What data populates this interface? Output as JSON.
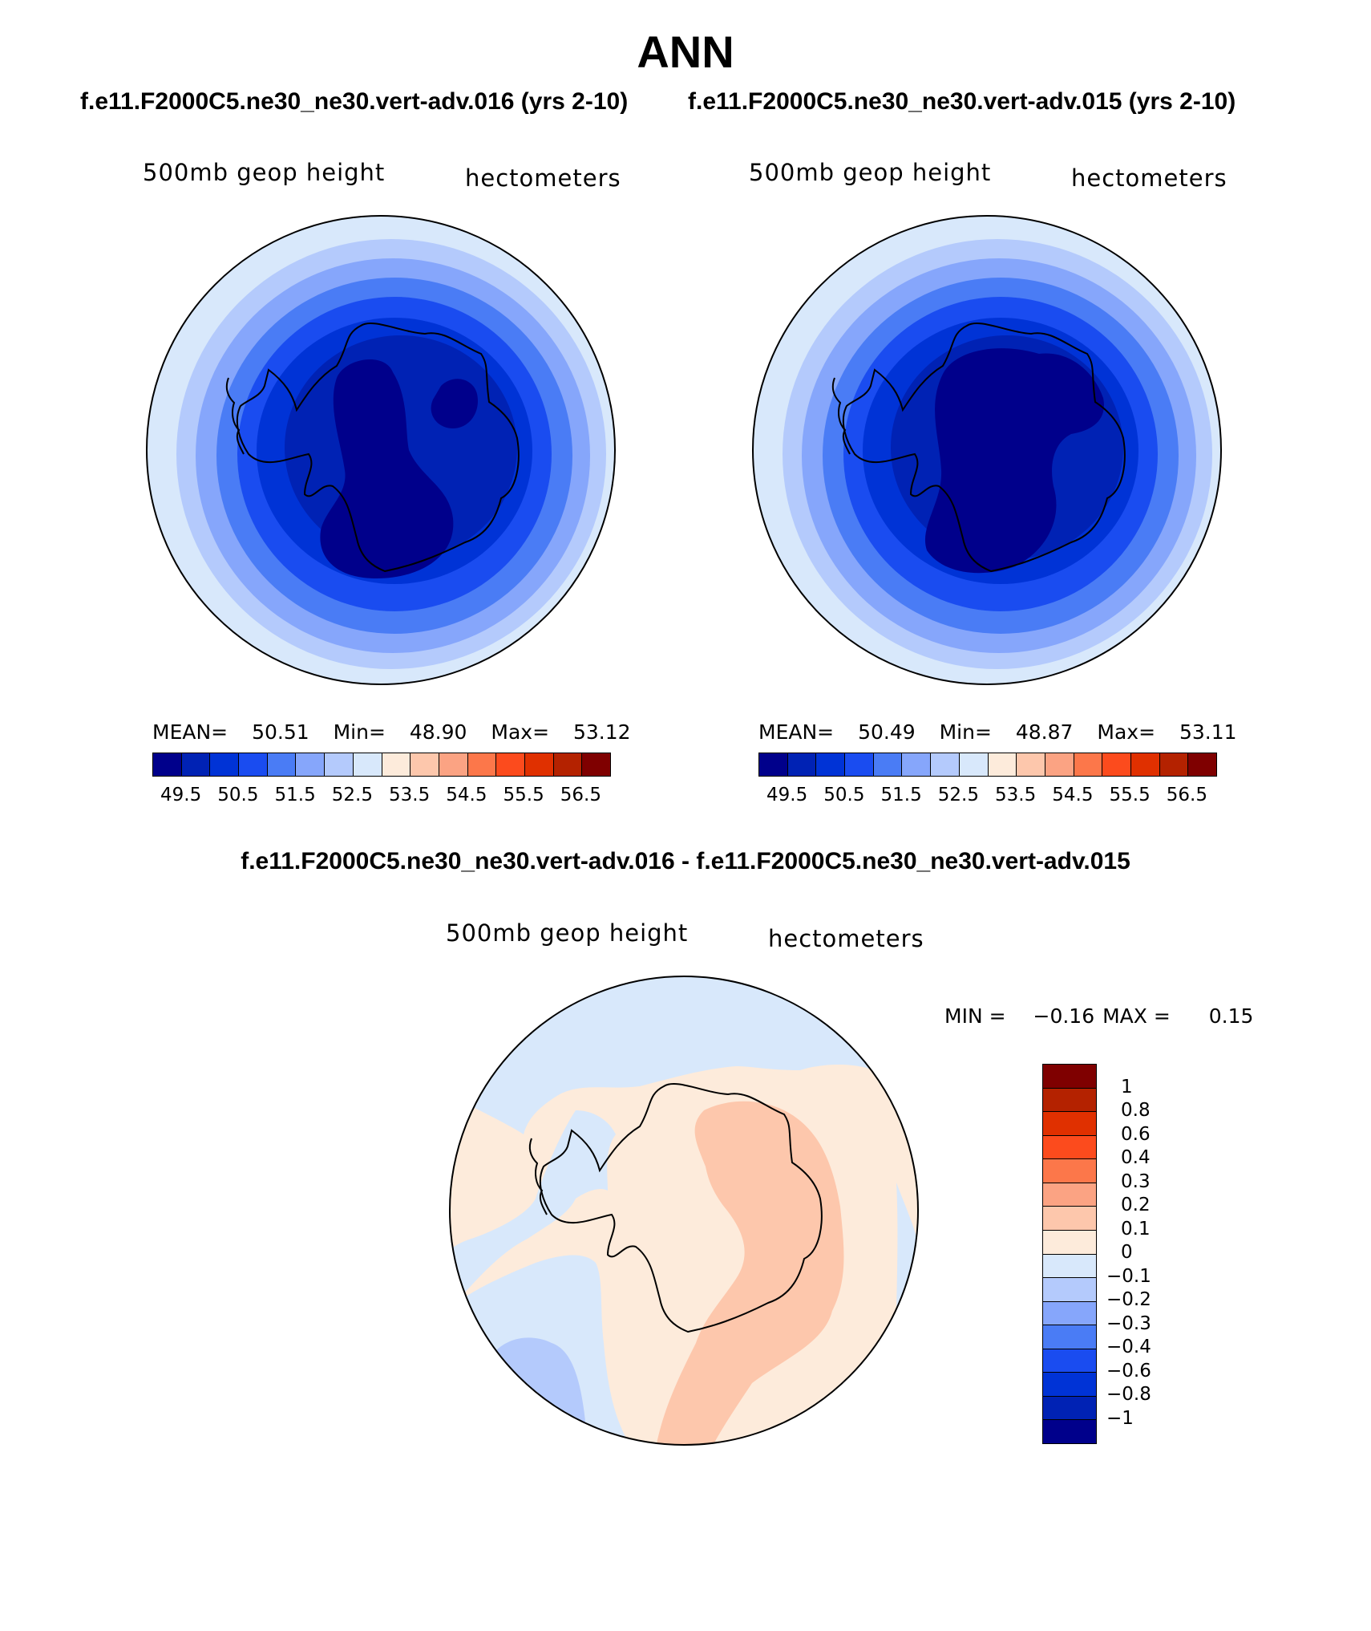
{
  "header": {
    "title": "ANN",
    "subtitle_left": "f.e11.F2000C5.ne30_ne30.vert-adv.016 (yrs 2-10)",
    "subtitle_right": "f.e11.F2000C5.ne30_ne30.vert-adv.015 (yrs 2-10)",
    "diff_title": "f.e11.F2000C5.ne30_ne30.vert-adv.016 - f.e11.F2000C5.ne30_ne30.vert-adv.015"
  },
  "panels": {
    "left": {
      "variable": "500mb geop height",
      "units": "hectometers",
      "mean_label": "MEAN=",
      "mean": "50.51",
      "min_label": "Min=",
      "min": "48.90",
      "max_label": "Max=",
      "max": "53.12"
    },
    "right": {
      "variable": "500mb geop height",
      "units": "hectometers",
      "mean_label": "MEAN=",
      "mean": "50.49",
      "min_label": "Min=",
      "min": "48.87",
      "max_label": "Max=",
      "max": "53.11"
    },
    "diff": {
      "variable": "500mb geop height",
      "units": "hectometers",
      "min_label": "MIN =",
      "min": "−0.16",
      "max_label": "MAX =",
      "max": "0.15"
    }
  },
  "colorbar_main": {
    "colors": [
      "#00008b",
      "#0022b4",
      "#0033d6",
      "#1a4cf0",
      "#4a7cf5",
      "#86a6fb",
      "#b4cafc",
      "#d8e8fb",
      "#fdebdb",
      "#fdc7ac",
      "#fba383",
      "#fc774a",
      "#fc4b1d",
      "#e03000",
      "#b42200",
      "#7f0000"
    ],
    "labels": [
      "49.5",
      "50.5",
      "51.5",
      "52.5",
      "53.5",
      "54.5",
      "55.5",
      "56.5"
    ]
  },
  "colorbar_diff": {
    "colors_top_to_bottom": [
      "#7f0000",
      "#b42200",
      "#e03000",
      "#fc4b1d",
      "#fc774a",
      "#fba383",
      "#fdc7ac",
      "#fdebdb",
      "#d8e8fb",
      "#b4cafc",
      "#86a6fb",
      "#4a7cf5",
      "#1a4cf0",
      "#0033d6",
      "#0022b4",
      "#00008b"
    ],
    "labels": [
      "1",
      "0.8",
      "0.6",
      "0.4",
      "0.3",
      "0.2",
      "0.1",
      "0",
      "−0.1",
      "−0.2",
      "−0.3",
      "−0.4",
      "−0.6",
      "−0.8",
      "−1"
    ]
  }
}
